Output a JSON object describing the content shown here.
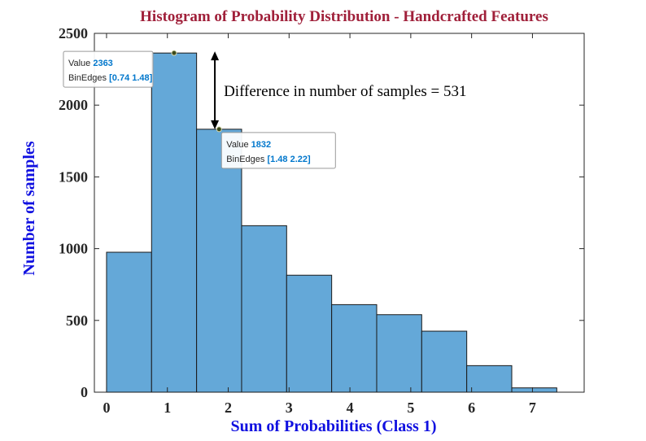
{
  "chart_data": {
    "type": "bar",
    "title": "Histogram of Probability Distribution - Handcrafted Features",
    "xlabel": "Sum of Probabilities (Class 1)",
    "ylabel": "Number of samples",
    "xlim": [
      -0.2,
      7.85
    ],
    "ylim": [
      0,
      2500
    ],
    "xticks": [
      0,
      1,
      2,
      3,
      4,
      5,
      6,
      7
    ],
    "yticks": [
      0,
      500,
      1000,
      1500,
      2000,
      2500
    ],
    "bin_edges": [
      0,
      0.74,
      1.48,
      2.22,
      2.96,
      3.7,
      4.44,
      5.18,
      5.92,
      6.66,
      7.4
    ],
    "values": [
      975,
      2363,
      1832,
      1160,
      815,
      610,
      540,
      425,
      185,
      30
    ],
    "bar_color": "#64a8d8",
    "annotation": {
      "text": "Difference in number of samples = 531",
      "from_value": 2363,
      "to_value": 1832,
      "x": 1.78
    },
    "datatips": [
      {
        "value_label": "Value",
        "value": "2363",
        "edges_label": "BinEdges",
        "edges": "[0.74 1.48]",
        "x": 1.11,
        "y": 2363
      },
      {
        "value_label": "Value",
        "value": "1832",
        "edges_label": "BinEdges",
        "edges": "[1.48 2.22]",
        "x": 1.85,
        "y": 1832
      }
    ]
  }
}
